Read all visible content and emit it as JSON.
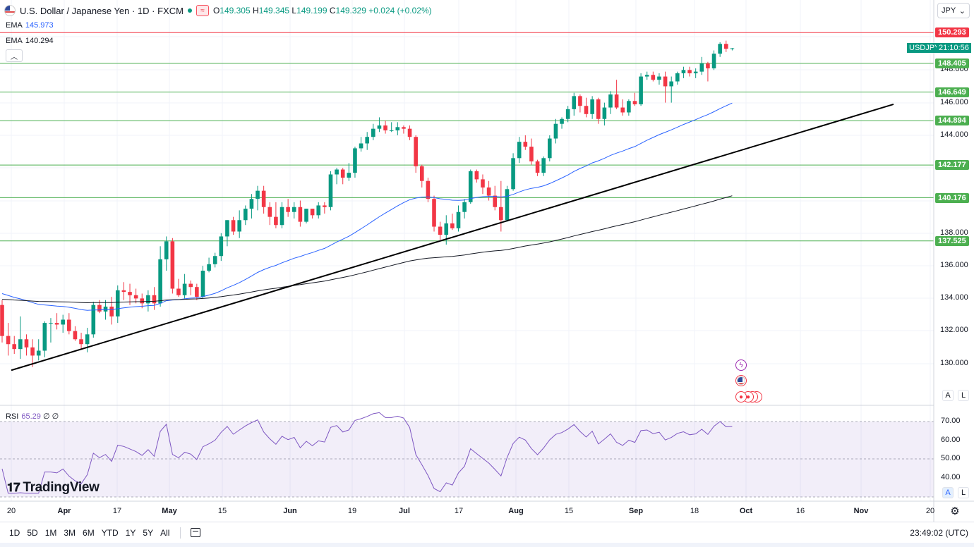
{
  "header": {
    "title": "U.S. Dollar / Japanese Yen · 1D · FXCM",
    "o_key": "O",
    "o_val": "149.305",
    "h_key": "H",
    "h_val": "149.345",
    "l_key": "L",
    "l_val": "149.199",
    "c_key": "C",
    "c_val": "149.329",
    "change": "+0.024 (+0.02%)"
  },
  "indicators": {
    "ema1_label": "EMA",
    "ema1_value": "145.973",
    "ema2_label": "EMA",
    "ema2_value": "140.294",
    "rsi_label": "RSI",
    "rsi_value": "65.29",
    "rsi_extra": "∅ ∅"
  },
  "currency": "JPY",
  "symbol_tag": "USDJPY",
  "countdown": "21:10:56",
  "price_tags": {
    "r150": "150.293",
    "r148": "148.405",
    "r146": "146.649",
    "r144": "144.894",
    "r142": "142.177",
    "r140": "140.176",
    "r137": "137.525"
  },
  "price_axis": [
    "148.000",
    "146.000",
    "144.000",
    "138.000",
    "136.000",
    "134.000",
    "132.000",
    "130.000"
  ],
  "rsi_axis": [
    "70.00",
    "60.00",
    "50.00",
    "40.00"
  ],
  "time_axis": [
    "20",
    "Apr",
    "17",
    "May",
    "15",
    "Jun",
    "19",
    "Jul",
    "17",
    "Aug",
    "15",
    "Sep",
    "18",
    "Oct",
    "16",
    "Nov",
    "20"
  ],
  "timeframes": [
    "1D",
    "5D",
    "1M",
    "3M",
    "6M",
    "YTD",
    "1Y",
    "5Y",
    "All"
  ],
  "clock": "23:49:02 (UTC)",
  "logo_text": "TradingView",
  "scale_buttons": {
    "auto": "A",
    "log": "L"
  },
  "colors": {
    "up": "#089981",
    "down": "#f23645",
    "ema50": "#2962ff",
    "ema200": "#131722",
    "rsi": "#7e57c2",
    "hline": "#4caf50",
    "resistance": "#f23645"
  },
  "chart_data": {
    "type": "candlestick",
    "pair": "USDJPY",
    "period": "daily, 2023-03-20 to 2023-09-29",
    "candles": [
      [
        133.6,
        133.9,
        131.3,
        131.7
      ],
      [
        131.7,
        132.5,
        130.5,
        131.2
      ],
      [
        131.2,
        131.7,
        130.6,
        130.9
      ],
      [
        130.9,
        132.9,
        130.3,
        131.5
      ],
      [
        131.5,
        131.8,
        130.5,
        131.0
      ],
      [
        131.0,
        131.5,
        129.8,
        130.5
      ],
      [
        130.5,
        131.5,
        130.2,
        130.8
      ],
      [
        130.8,
        132.6,
        130.4,
        132.5
      ],
      [
        132.5,
        132.8,
        131.3,
        132.5
      ],
      [
        132.5,
        133.1,
        132.1,
        132.4
      ],
      [
        132.4,
        133.0,
        131.9,
        132.7
      ],
      [
        132.7,
        133.1,
        131.8,
        132.0
      ],
      [
        132.0,
        132.3,
        131.4,
        131.5
      ],
      [
        131.5,
        131.9,
        130.9,
        131.2
      ],
      [
        131.2,
        132.2,
        130.7,
        131.8
      ],
      [
        131.8,
        133.8,
        131.6,
        133.6
      ],
      [
        133.6,
        133.9,
        133.1,
        133.2
      ],
      [
        133.2,
        133.9,
        132.7,
        133.5
      ],
      [
        133.5,
        134.1,
        132.4,
        132.9
      ],
      [
        132.9,
        134.8,
        132.5,
        134.5
      ],
      [
        134.5,
        135.0,
        133.9,
        134.4
      ],
      [
        134.4,
        134.9,
        133.6,
        134.2
      ],
      [
        134.2,
        134.6,
        133.7,
        134.0
      ],
      [
        134.0,
        134.3,
        133.4,
        133.7
      ],
      [
        133.7,
        134.5,
        133.2,
        134.2
      ],
      [
        134.2,
        134.7,
        133.3,
        133.7
      ],
      [
        133.7,
        137.2,
        133.5,
        136.4
      ],
      [
        136.4,
        137.8,
        135.7,
        137.5
      ],
      [
        137.5,
        137.7,
        134.3,
        134.6
      ],
      [
        134.6,
        135.2,
        134.1,
        134.2
      ],
      [
        134.2,
        135.5,
        134.0,
        134.9
      ],
      [
        134.9,
        135.1,
        134.2,
        134.7
      ],
      [
        134.7,
        134.9,
        133.9,
        134.1
      ],
      [
        134.1,
        136.0,
        134.0,
        135.7
      ],
      [
        135.7,
        136.5,
        135.6,
        136.1
      ],
      [
        136.1,
        136.8,
        135.9,
        136.6
      ],
      [
        136.6,
        138.0,
        136.3,
        137.8
      ],
      [
        137.8,
        138.8,
        137.2,
        138.8
      ],
      [
        138.8,
        139.0,
        137.9,
        138.1
      ],
      [
        138.1,
        139.4,
        137.7,
        138.8
      ],
      [
        138.8,
        139.7,
        138.5,
        139.5
      ],
      [
        139.5,
        140.4,
        138.9,
        140.1
      ],
      [
        140.1,
        140.9,
        139.4,
        140.6
      ],
      [
        140.6,
        140.9,
        139.2,
        139.6
      ],
      [
        139.6,
        139.9,
        138.5,
        139.0
      ],
      [
        139.0,
        139.9,
        138.3,
        138.5
      ],
      [
        138.5,
        139.9,
        138.3,
        139.6
      ],
      [
        139.6,
        140.1,
        139.0,
        139.3
      ],
      [
        139.3,
        139.9,
        138.9,
        139.6
      ],
      [
        139.6,
        140.0,
        138.4,
        138.7
      ],
      [
        138.7,
        139.5,
        138.6,
        139.5
      ],
      [
        139.5,
        139.5,
        138.9,
        139.1
      ],
      [
        139.1,
        139.9,
        138.9,
        139.7
      ],
      [
        139.7,
        139.9,
        139.2,
        139.6
      ],
      [
        139.6,
        141.8,
        139.4,
        141.6
      ],
      [
        141.6,
        142.0,
        141.0,
        141.9
      ],
      [
        141.9,
        142.0,
        141.0,
        141.4
      ],
      [
        141.4,
        142.3,
        141.2,
        141.7
      ],
      [
        141.7,
        143.3,
        141.4,
        143.2
      ],
      [
        143.2,
        143.9,
        143.0,
        143.5
      ],
      [
        143.5,
        144.2,
        143.1,
        143.9
      ],
      [
        143.9,
        144.7,
        143.7,
        144.4
      ],
      [
        144.4,
        145.1,
        144.2,
        144.6
      ],
      [
        144.6,
        144.9,
        144.1,
        144.3
      ],
      [
        144.3,
        144.8,
        144.2,
        144.3
      ],
      [
        144.3,
        144.8,
        144.0,
        144.5
      ],
      [
        144.5,
        144.6,
        144.1,
        144.4
      ],
      [
        144.4,
        144.6,
        143.7,
        143.9
      ],
      [
        143.9,
        144.0,
        141.7,
        142.1
      ],
      [
        142.1,
        142.2,
        140.8,
        141.2
      ],
      [
        141.2,
        141.4,
        139.9,
        140.1
      ],
      [
        140.1,
        140.3,
        138.1,
        138.4
      ],
      [
        138.4,
        138.7,
        137.6,
        137.9
      ],
      [
        137.9,
        139.1,
        137.3,
        138.6
      ],
      [
        138.6,
        139.2,
        138.2,
        138.3
      ],
      [
        138.3,
        139.7,
        138.1,
        139.3
      ],
      [
        139.3,
        140.1,
        138.9,
        139.9
      ],
      [
        139.9,
        141.9,
        139.8,
        141.8
      ],
      [
        141.8,
        141.9,
        141.1,
        141.3
      ],
      [
        141.3,
        141.6,
        140.4,
        140.8
      ],
      [
        140.8,
        141.2,
        140.0,
        140.3
      ],
      [
        140.3,
        140.9,
        139.4,
        139.6
      ],
      [
        139.6,
        141.2,
        138.1,
        138.8
      ],
      [
        138.8,
        140.9,
        138.7,
        140.7
      ],
      [
        140.7,
        142.9,
        140.6,
        142.6
      ],
      [
        142.6,
        143.9,
        142.3,
        143.6
      ],
      [
        143.6,
        144.0,
        143.1,
        143.3
      ],
      [
        143.3,
        143.8,
        142.2,
        142.4
      ],
      [
        142.4,
        142.5,
        141.5,
        141.7
      ],
      [
        141.7,
        142.7,
        141.5,
        142.6
      ],
      [
        142.6,
        144.0,
        142.4,
        143.8
      ],
      [
        143.8,
        145.0,
        143.5,
        144.7
      ],
      [
        144.7,
        145.1,
        144.4,
        145.0
      ],
      [
        145.0,
        145.8,
        144.8,
        145.6
      ],
      [
        145.6,
        146.6,
        145.2,
        146.4
      ],
      [
        146.4,
        146.5,
        145.4,
        145.8
      ],
      [
        145.8,
        146.3,
        145.1,
        145.3
      ],
      [
        145.3,
        146.4,
        145.0,
        146.2
      ],
      [
        146.2,
        146.3,
        144.7,
        145.0
      ],
      [
        145.0,
        146.0,
        144.6,
        145.7
      ],
      [
        145.7,
        146.7,
        145.3,
        146.5
      ],
      [
        146.5,
        147.4,
        145.6,
        145.7
      ],
      [
        145.7,
        146.2,
        145.2,
        145.4
      ],
      [
        145.4,
        146.2,
        145.2,
        146.1
      ],
      [
        146.1,
        146.6,
        145.8,
        145.9
      ],
      [
        145.9,
        147.8,
        145.8,
        147.6
      ],
      [
        147.6,
        147.9,
        147.4,
        147.7
      ],
      [
        147.7,
        147.9,
        147.3,
        147.4
      ],
      [
        147.4,
        147.8,
        147.1,
        147.6
      ],
      [
        147.6,
        147.9,
        146.0,
        147.0
      ],
      [
        147.0,
        147.6,
        146.0,
        147.3
      ],
      [
        147.3,
        147.9,
        147.1,
        147.8
      ],
      [
        147.8,
        148.2,
        147.5,
        148.0
      ],
      [
        148.0,
        148.2,
        147.6,
        147.8
      ],
      [
        147.8,
        148.1,
        147.5,
        147.9
      ],
      [
        147.9,
        148.8,
        147.7,
        148.4
      ],
      [
        148.4,
        148.5,
        147.3,
        148.1
      ],
      [
        148.1,
        149.2,
        148.0,
        149.0
      ],
      [
        149.0,
        149.7,
        148.8,
        149.6
      ],
      [
        149.6,
        149.8,
        149.1,
        149.3
      ],
      [
        149.3,
        149.35,
        149.2,
        149.33
      ]
    ],
    "ema50_endpoints": [
      [
        0,
        134.3
      ],
      [
        120,
        145.973
      ]
    ],
    "ema200_endpoints": [
      [
        0,
        133.95
      ],
      [
        120,
        140.294
      ]
    ],
    "horizontal_levels": [
      150.293,
      148.405,
      146.649,
      144.894,
      142.177,
      140.176,
      137.525
    ],
    "trendline": [
      [
        0,
        129.6
      ],
      [
        130,
        145.9
      ]
    ],
    "rsi_last": 65.29,
    "ylim": [
      129,
      151
    ],
    "rsi_range": [
      30,
      80
    ]
  }
}
